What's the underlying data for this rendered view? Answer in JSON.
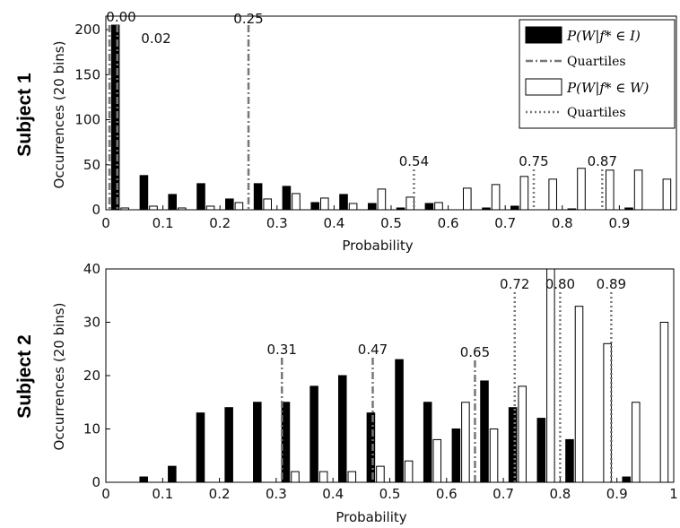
{
  "chart_data": [
    {
      "type": "bar",
      "panel_label": "Subject 1",
      "xlabel": "Probability",
      "ylabel": "Occurrences (20 bins)",
      "xlim": [
        0,
        1
      ],
      "ylim": [
        0,
        215
      ],
      "xticks": [
        "0",
        "0.1",
        "0.2",
        "0.3",
        "0.4",
        "0.5",
        "0.6",
        "0.7",
        "0.8",
        "0.9"
      ],
      "yticks": [
        0,
        50,
        100,
        150,
        200
      ],
      "bin_centers": [
        0.025,
        0.075,
        0.125,
        0.175,
        0.225,
        0.275,
        0.325,
        0.375,
        0.425,
        0.475,
        0.525,
        0.575,
        0.625,
        0.675,
        0.725,
        0.775,
        0.825,
        0.875,
        0.925,
        0.975
      ],
      "series": [
        {
          "name": "P(W|f* ∈ I)",
          "fill": "#000000",
          "values": [
            205,
            38,
            17,
            29,
            12,
            29,
            26,
            8,
            17,
            7,
            2,
            7,
            0,
            2,
            4,
            0,
            1,
            0,
            2,
            0
          ]
        },
        {
          "name": "P(W|f* ∈ W)",
          "fill": "#ffffff",
          "values": [
            2,
            4,
            2,
            4,
            8,
            12,
            18,
            13,
            7,
            23,
            14,
            8,
            24,
            28,
            37,
            34,
            46,
            44,
            44,
            34
          ]
        }
      ],
      "quartiles": [
        {
          "series": "P(W|f* ∈ I)",
          "style": "dashdot",
          "values": [
            0.0,
            0.02,
            0.25
          ],
          "labels": [
            "0.00",
            "0.02",
            "0.25"
          ]
        },
        {
          "series": "P(W|f* ∈ W)",
          "style": "dotted",
          "values": [
            0.54,
            0.75,
            0.87
          ],
          "labels": [
            "0.54",
            "0.75",
            "0.87"
          ]
        }
      ],
      "legend": {
        "placement": "top-right",
        "entries": [
          {
            "math": "P(W|f* ∈ I)",
            "kind": "filled-box"
          },
          {
            "text": "Quartiles",
            "kind": "dashdot"
          },
          {
            "math": "P(W|f* ∈ W)",
            "kind": "open-box"
          },
          {
            "text": "Quartiles",
            "kind": "dotted"
          }
        ]
      }
    },
    {
      "type": "bar",
      "panel_label": "Subject 2",
      "xlabel": "Probability",
      "ylabel": "Occurrences (20 bins)",
      "xlim": [
        0,
        1
      ],
      "ylim": [
        0,
        40
      ],
      "xticks": [
        "0",
        "0.1",
        "0.2",
        "0.3",
        "0.4",
        "0.5",
        "0.6",
        "0.7",
        "0.8",
        "0.9",
        "1"
      ],
      "yticks": [
        0,
        10,
        20,
        30,
        40
      ],
      "bin_centers": [
        0.025,
        0.075,
        0.125,
        0.175,
        0.225,
        0.275,
        0.325,
        0.375,
        0.425,
        0.475,
        0.525,
        0.575,
        0.625,
        0.675,
        0.725,
        0.775,
        0.825,
        0.875,
        0.925,
        0.975
      ],
      "series": [
        {
          "name": "P(W|f* ∈ I)",
          "fill": "#000000",
          "values": [
            0,
            1,
            3,
            13,
            14,
            15,
            15,
            18,
            20,
            13,
            23,
            15,
            10,
            19,
            14,
            12,
            8,
            0,
            1,
            0
          ]
        },
        {
          "name": "P(W|f* ∈ W)",
          "fill": "#ffffff",
          "values": [
            0,
            0,
            0,
            0,
            0,
            0,
            2,
            2,
            2,
            3,
            4,
            8,
            15,
            10,
            18,
            45,
            33,
            26,
            15,
            30
          ]
        }
      ],
      "quartiles": [
        {
          "series": "P(W|f* ∈ I)",
          "style": "dashdot",
          "values": [
            0.31,
            0.47,
            0.65
          ],
          "labels": [
            "0.31",
            "0.47",
            "0.65"
          ]
        },
        {
          "series": "P(W|f* ∈ W)",
          "style": "dotted",
          "values": [
            0.72,
            0.8,
            0.89
          ],
          "labels": [
            "0.72",
            "0.80",
            "0.89"
          ]
        }
      ]
    }
  ]
}
